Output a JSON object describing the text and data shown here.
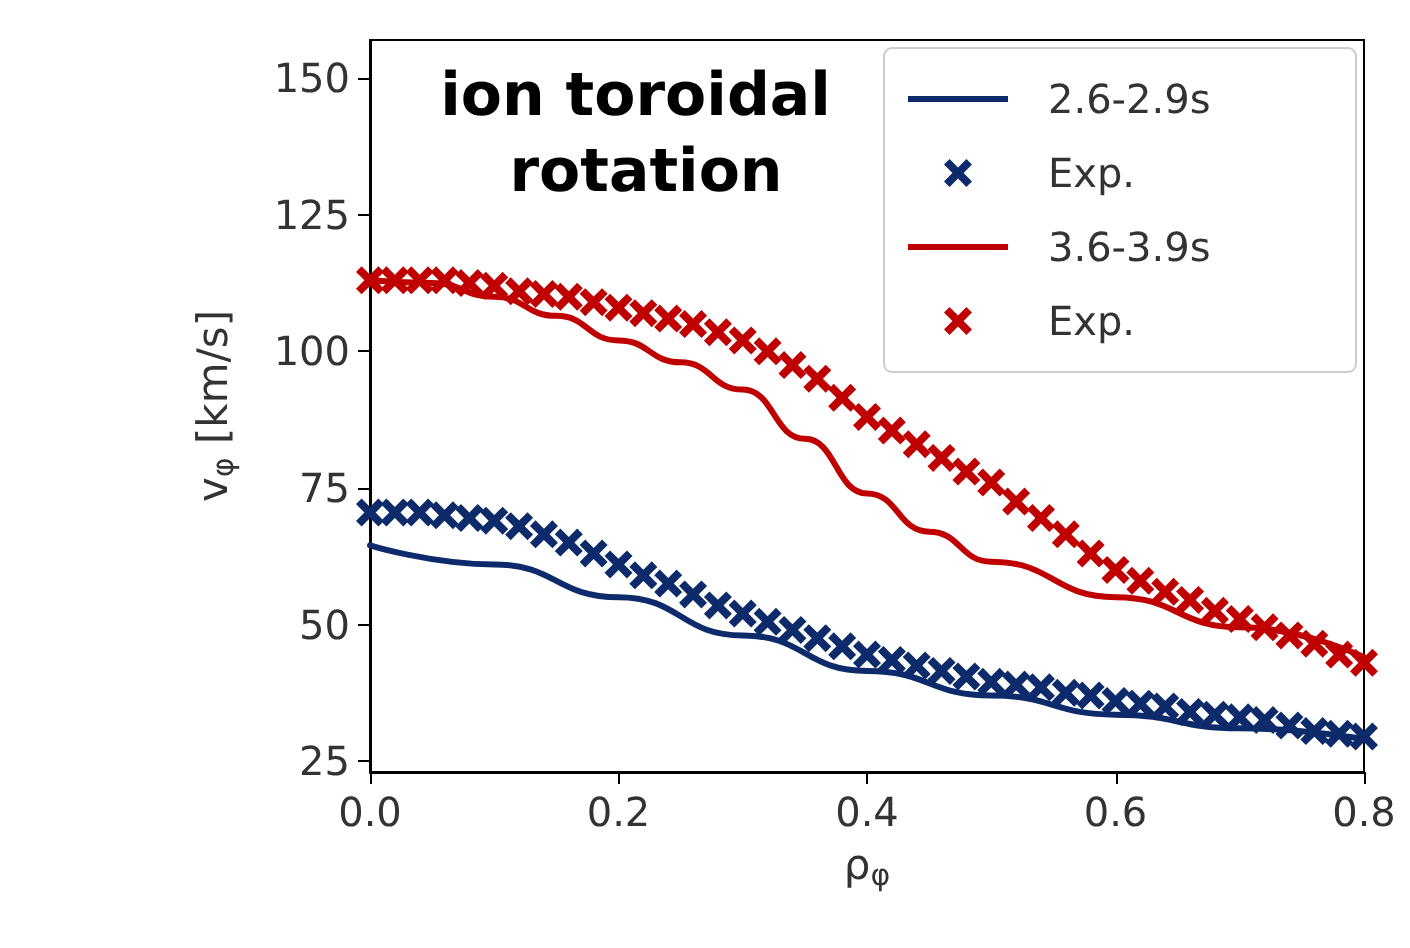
{
  "chart_data": {
    "type": "line",
    "title": "ion toroidal rotation",
    "xlabel": "ρ$_{φ}$",
    "ylabel": "v$_{φ}$ [km/s]",
    "xlim": [
      0,
      0.8
    ],
    "xticks": [
      {
        "value": 0,
        "label": "0.0"
      },
      {
        "value": 0.2,
        "label": "0.2"
      },
      {
        "value": 0.4,
        "label": "0.4"
      },
      {
        "value": 0.6,
        "label": "0.6"
      },
      {
        "value": 0.8,
        "label": "0.8"
      }
    ],
    "ylim": [
      23,
      157
    ],
    "yticks": [
      25,
      50,
      75,
      100,
      125,
      150
    ],
    "grid": false,
    "legend": "top right",
    "series": [
      {
        "name": "2.6-2.9s",
        "color": "#0d2a6b",
        "marker": "none",
        "line_style": "solid",
        "x": [
          0,
          0.1,
          0.2,
          0.3,
          0.4,
          0.5,
          0.6,
          0.7,
          0.8
        ],
        "values": [
          64.5,
          61,
          55,
          48,
          41.5,
          37,
          33.5,
          31,
          29
        ]
      },
      {
        "name": "Exp.",
        "type": "scatter",
        "color": "#0d2a6b",
        "marker": "cross",
        "x": [
          0,
          0.02,
          0.04,
          0.06,
          0.08,
          0.1,
          0.12,
          0.14,
          0.16,
          0.18,
          0.2,
          0.22,
          0.24,
          0.26,
          0.28,
          0.3,
          0.32,
          0.34,
          0.36,
          0.38,
          0.4,
          0.42,
          0.44,
          0.46,
          0.48,
          0.5,
          0.52,
          0.54,
          0.56,
          0.58,
          0.6,
          0.62,
          0.64,
          0.66,
          0.68,
          0.7,
          0.72,
          0.74,
          0.76,
          0.78,
          0.8
        ],
        "values": [
          70.5,
          70.5,
          70.5,
          70,
          69.5,
          69,
          68,
          66.5,
          65,
          63,
          61,
          59,
          57.5,
          55.5,
          53.5,
          52,
          50.5,
          49,
          47.5,
          46,
          44.5,
          43.5,
          42.5,
          41.5,
          40.5,
          39.5,
          39,
          38.5,
          37.5,
          37,
          36,
          35.5,
          35,
          34,
          33.5,
          33,
          32.5,
          31.5,
          30.5,
          30,
          29.5
        ]
      },
      {
        "name": "3.6-3.9s",
        "color": "#c00000",
        "marker": "none",
        "line_style": "solid",
        "x": [
          0,
          0.05,
          0.1,
          0.15,
          0.2,
          0.25,
          0.3,
          0.35,
          0.4,
          0.45,
          0.5,
          0.6,
          0.7,
          0.8
        ],
        "values": [
          113,
          112.5,
          110,
          106.5,
          102,
          98,
          93,
          84,
          74,
          67,
          61.5,
          55,
          49.5,
          44
        ]
      },
      {
        "name": "Exp.",
        "type": "scatter",
        "color": "#c00000",
        "marker": "cross",
        "x": [
          0,
          0.02,
          0.04,
          0.06,
          0.08,
          0.1,
          0.12,
          0.14,
          0.16,
          0.18,
          0.2,
          0.22,
          0.24,
          0.26,
          0.28,
          0.3,
          0.32,
          0.34,
          0.36,
          0.38,
          0.4,
          0.42,
          0.44,
          0.46,
          0.48,
          0.5,
          0.52,
          0.54,
          0.56,
          0.58,
          0.6,
          0.62,
          0.64,
          0.66,
          0.68,
          0.7,
          0.72,
          0.74,
          0.76,
          0.78,
          0.8
        ],
        "values": [
          113,
          113,
          113,
          113,
          112.5,
          112,
          111,
          110.5,
          110,
          109,
          108,
          107,
          106,
          105,
          103.5,
          102,
          100,
          97.5,
          95,
          91.5,
          88,
          85.5,
          83,
          80.5,
          78,
          76,
          72.5,
          69.5,
          66.5,
          63,
          60,
          58,
          56,
          54.5,
          52.5,
          51,
          49.5,
          48,
          46.5,
          44.5,
          43
        ]
      }
    ]
  }
}
